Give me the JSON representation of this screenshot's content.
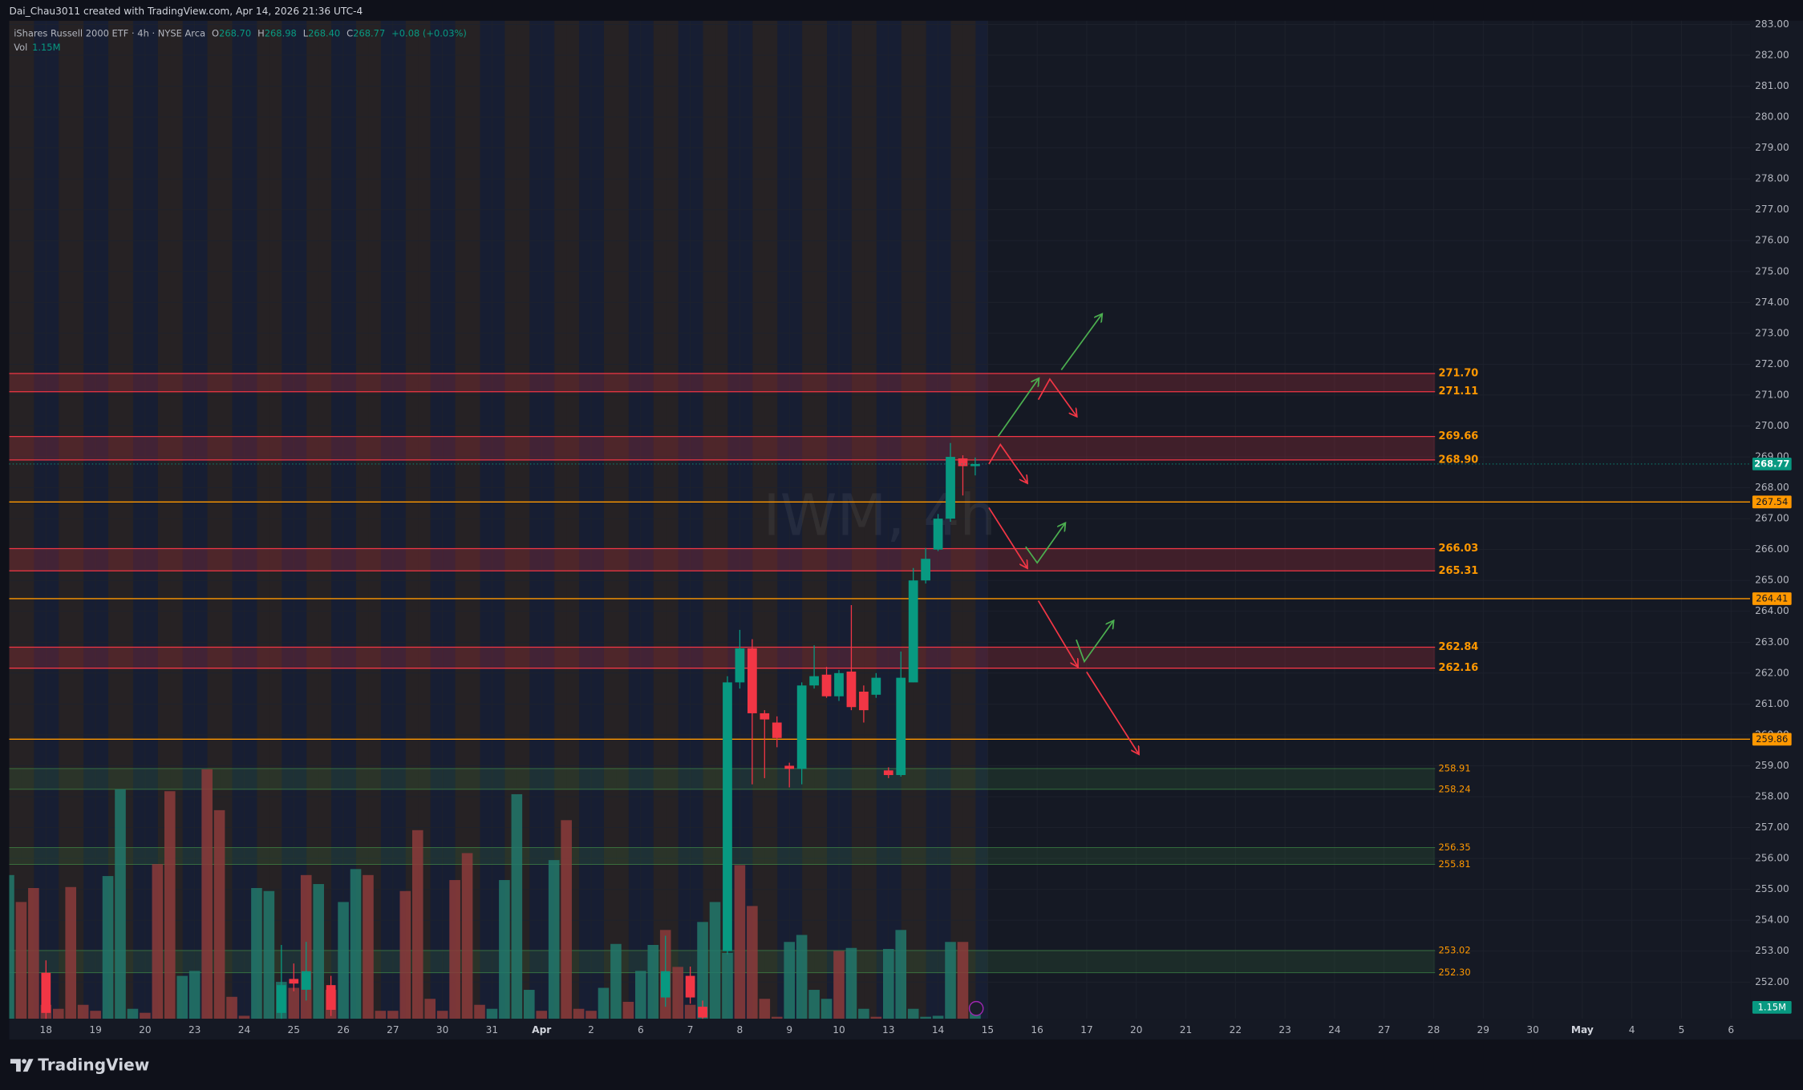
{
  "header": {
    "creator": "Dai_Chau3011 created with TradingView.com, Apr 14, 2026 21:36 UTC-4",
    "symbol": "iShares Russell 2000 ETF · 4h · NYSE Arca",
    "ohlc": [
      {
        "key": "O",
        "value": "268.70"
      },
      {
        "key": "H",
        "value": "268.98"
      },
      {
        "key": "L",
        "value": "268.40"
      },
      {
        "key": "C",
        "value": "268.77"
      }
    ],
    "change": "+0.08 (+0.03%)",
    "volume_key": "Vol",
    "volume": "1.15M"
  },
  "footer": {
    "brand": "TradingView"
  },
  "chart_data": {
    "type": "candlestick",
    "watermark": "IWM, 4h",
    "xlim": [
      -0.742,
      34.385
    ],
    "ylim": [
      250.81,
      283.12
    ],
    "xticks": [
      {
        "value": 0,
        "label": "18"
      },
      {
        "value": 1,
        "label": "19"
      },
      {
        "value": 2,
        "label": "20"
      },
      {
        "value": 3,
        "label": "23"
      },
      {
        "value": 4,
        "label": "24"
      },
      {
        "value": 5,
        "label": "25"
      },
      {
        "value": 6,
        "label": "26"
      },
      {
        "value": 7,
        "label": "27"
      },
      {
        "value": 8,
        "label": "30"
      },
      {
        "value": 9,
        "label": "31"
      },
      {
        "value": 10,
        "label": "Apr"
      },
      {
        "value": 11,
        "label": "2"
      },
      {
        "value": 12,
        "label": "6"
      },
      {
        "value": 13,
        "label": "7"
      },
      {
        "value": 14,
        "label": "8"
      },
      {
        "value": 15,
        "label": "9"
      },
      {
        "value": 16,
        "label": "10"
      },
      {
        "value": 17,
        "label": "13"
      },
      {
        "value": 18,
        "label": "14"
      },
      {
        "value": 19,
        "label": "15"
      },
      {
        "value": 20,
        "label": "16"
      },
      {
        "value": 21,
        "label": "17"
      },
      {
        "value": 22,
        "label": "20"
      },
      {
        "value": 23,
        "label": "21"
      },
      {
        "value": 24,
        "label": "22"
      },
      {
        "value": 25,
        "label": "23"
      },
      {
        "value": 26,
        "label": "24"
      },
      {
        "value": 27,
        "label": "27"
      },
      {
        "value": 28,
        "label": "28"
      },
      {
        "value": 29,
        "label": "29"
      },
      {
        "value": 30,
        "label": "30"
      },
      {
        "value": 31,
        "label": "May"
      },
      {
        "value": 32,
        "label": "4"
      },
      {
        "value": 33,
        "label": "5"
      },
      {
        "value": 34,
        "label": "6"
      }
    ],
    "yticks": [
      {
        "value": 252,
        "label": "252.00"
      },
      {
        "value": 253,
        "label": "253.00"
      },
      {
        "value": 254,
        "label": "254.00"
      },
      {
        "value": 255,
        "label": "255.00"
      },
      {
        "value": 256,
        "label": "256.00"
      },
      {
        "value": 257,
        "label": "257.00"
      },
      {
        "value": 258,
        "label": "258.00"
      },
      {
        "value": 259,
        "label": "259.00"
      },
      {
        "value": 260,
        "label": "260.00"
      },
      {
        "value": 261,
        "label": "261.00"
      },
      {
        "value": 262,
        "label": "262.00"
      },
      {
        "value": 263,
        "label": "263.00"
      },
      {
        "value": 264,
        "label": "264.00"
      },
      {
        "value": 265,
        "label": "265.00"
      },
      {
        "value": 266,
        "label": "266.00"
      },
      {
        "value": 267,
        "label": "267.00"
      },
      {
        "value": 268,
        "label": "268.00"
      },
      {
        "value": 269,
        "label": "269.00"
      },
      {
        "value": 270,
        "label": "270.00"
      },
      {
        "value": 271,
        "label": "271.00"
      },
      {
        "value": 272,
        "label": "272.00"
      },
      {
        "value": 273,
        "label": "273.00"
      },
      {
        "value": 274,
        "label": "274.00"
      },
      {
        "value": 275,
        "label": "275.00"
      },
      {
        "value": 276,
        "label": "276.00"
      },
      {
        "value": 277,
        "label": "277.00"
      },
      {
        "value": 278,
        "label": "278.00"
      },
      {
        "value": 279,
        "label": "279.00"
      },
      {
        "value": 280,
        "label": "280.00"
      },
      {
        "value": 281,
        "label": "281.00"
      },
      {
        "value": 282,
        "label": "282.00"
      },
      {
        "value": 283,
        "label": "283.00"
      }
    ],
    "up_color": "#089981",
    "down_color": "#f23645",
    "candles": {
      "x": [
        0.0,
        4.75,
        5.0,
        5.25,
        5.75,
        12.5,
        13.0,
        13.25,
        13.75,
        14.0,
        14.25,
        14.5,
        14.75,
        15.0,
        15.25,
        15.5,
        15.75,
        16.0,
        16.25,
        16.5,
        16.75,
        17.0,
        17.25,
        17.5,
        17.75,
        18.0,
        18.25,
        18.5,
        18.75
      ],
      "open": [
        252.3,
        251.0,
        252.1,
        251.75,
        251.9,
        251.5,
        252.2,
        251.2,
        253.0,
        261.7,
        262.8,
        260.7,
        260.4,
        259.0,
        258.9,
        261.6,
        261.95,
        261.25,
        262.05,
        261.4,
        261.3,
        258.85,
        258.7,
        261.7,
        265.0,
        266.0,
        267.0,
        268.95,
        268.7
      ],
      "high": [
        252.7,
        253.2,
        252.6,
        253.3,
        252.2,
        253.5,
        252.5,
        251.4,
        261.9,
        263.4,
        263.1,
        260.8,
        260.6,
        259.1,
        261.7,
        262.9,
        262.2,
        262.1,
        264.2,
        261.6,
        262.0,
        258.95,
        262.7,
        265.4,
        266.05,
        267.15,
        269.45,
        269.05,
        268.98
      ],
      "low": [
        250.5,
        250.7,
        251.7,
        251.4,
        250.9,
        251.2,
        251.3,
        250.7,
        252.9,
        261.5,
        258.4,
        258.6,
        259.6,
        258.3,
        258.4,
        261.5,
        261.2,
        261.1,
        260.8,
        260.4,
        261.2,
        258.6,
        258.65,
        261.7,
        264.9,
        265.95,
        266.9,
        267.75,
        268.4
      ],
      "close": [
        251.0,
        251.9,
        251.95,
        252.35,
        251.1,
        252.35,
        251.5,
        250.85,
        261.7,
        262.8,
        260.7,
        260.5,
        259.9,
        258.9,
        261.6,
        261.9,
        261.25,
        262.0,
        260.9,
        260.8,
        261.85,
        258.7,
        261.85,
        265.0,
        265.7,
        267.0,
        269.0,
        268.7,
        268.77
      ]
    },
    "volume": {
      "vlim": [
        0,
        100
      ],
      "last_label": "1.15M",
      "x": [
        -0.75,
        -0.5,
        -0.25,
        0.0,
        0.25,
        0.5,
        0.75,
        1.0,
        1.25,
        1.5,
        1.75,
        2.0,
        2.25,
        2.5,
        2.75,
        3.0,
        3.25,
        3.5,
        3.75,
        4.0,
        4.25,
        4.5,
        4.75,
        5.0,
        5.25,
        5.5,
        5.75,
        6.0,
        6.25,
        6.5,
        6.75,
        7.0,
        7.25,
        7.5,
        7.75,
        8.0,
        8.25,
        8.5,
        8.75,
        9.0,
        9.25,
        9.5,
        9.75,
        10.0,
        10.25,
        10.5,
        10.75,
        11.0,
        11.25,
        11.5,
        11.75,
        12.0,
        12.25,
        12.5,
        12.75,
        13.0,
        13.25,
        13.5,
        13.75,
        14.0,
        14.25,
        14.5,
        14.75,
        15.0,
        15.25,
        15.5,
        15.75,
        16.0,
        16.25,
        16.5,
        16.75,
        17.0,
        17.25,
        17.5,
        17.75,
        18.0,
        18.25,
        18.5,
        18.75
      ],
      "values": [
        14.4,
        11.7,
        13.1,
        1.4,
        1.0,
        13.2,
        1.4,
        0.8,
        14.3,
        23.0,
        1.0,
        0.6,
        15.5,
        22.8,
        4.3,
        4.8,
        25.0,
        20.9,
        2.2,
        0.3,
        13.1,
        12.8,
        3.7,
        3.1,
        14.4,
        13.5,
        2.9,
        11.7,
        15.0,
        14.4,
        0.8,
        0.8,
        12.8,
        18.9,
        2.0,
        0.8,
        13.9,
        16.6,
        1.4,
        1.0,
        13.9,
        22.5,
        2.9,
        0.8,
        15.9,
        19.9,
        1.0,
        0.8,
        3.1,
        7.5,
        1.7,
        4.8,
        7.4,
        8.9,
        5.2,
        1.4,
        9.7,
        11.7,
        6.6,
        15.4,
        11.3,
        2.0,
        0.2,
        7.7,
        8.4,
        2.9,
        2.0,
        6.8,
        7.1,
        1.0,
        0.2,
        7.0,
        8.9,
        1.0,
        0.2,
        0.3,
        7.7,
        7.7,
        1.15
      ],
      "colors": [
        "#22786b",
        "#8c3b3b",
        "#8c3b3b",
        "#8c3b3b",
        "#8c3b3b",
        "#8c3b3b",
        "#8c3b3b",
        "#8c3b3b",
        "#22786b",
        "#22786b",
        "#22786b",
        "#8c3b3b",
        "#8c3b3b",
        "#8c3b3b",
        "#22786b",
        "#22786b",
        "#8c3b3b",
        "#8c3b3b",
        "#8c3b3b",
        "#8c3b3b",
        "#22786b",
        "#22786b",
        "#22786b",
        "#8c3b3b",
        "#8c3b3b",
        "#22786b",
        "#8c3b3b",
        "#22786b",
        "#22786b",
        "#8c3b3b",
        "#8c3b3b",
        "#8c3b3b",
        "#8c3b3b",
        "#8c3b3b",
        "#8c3b3b",
        "#8c3b3b",
        "#8c3b3b",
        "#8c3b3b",
        "#8c3b3b",
        "#22786b",
        "#22786b",
        "#22786b",
        "#22786b",
        "#8c3b3b",
        "#22786b",
        "#8c3b3b",
        "#8c3b3b",
        "#8c3b3b",
        "#22786b",
        "#22786b",
        "#8c3b3b",
        "#22786b",
        "#22786b",
        "#8c3b3b",
        "#8c3b3b",
        "#8c3b3b",
        "#22786b",
        "#22786b",
        "#22786b",
        "#8c3b3b",
        "#8c3b3b",
        "#8c3b3b",
        "#8c3b3b",
        "#22786b",
        "#22786b",
        "#22786b",
        "#22786b",
        "#8c3b3b",
        "#22786b",
        "#22786b",
        "#8c3b3b",
        "#22786b",
        "#22786b",
        "#22786b",
        "#22786b",
        "#22786b",
        "#22786b",
        "#8c3b3b",
        "#22786b"
      ]
    },
    "zones": [
      {
        "top": {
          "value": 271.7,
          "label": "271.70"
        },
        "bottom": 271.11,
        "color": "#f23645"
      },
      {
        "top": 269.66,
        "bottom": {
          "value": 268.9,
          "label": "268.90"
        },
        "color": "#f23645"
      },
      {
        "top": 266.03,
        "bottom": 265.31,
        "color": "#f23645"
      },
      {
        "top": 262.84,
        "bottom": 262.16,
        "color": "#f23645"
      },
      {
        "top": 258.91,
        "bottom": 258.24,
        "color": "#4caf50"
      },
      {
        "top": 256.35,
        "bottom": 255.81,
        "color": "#4caf50"
      },
      {
        "top": 253.02,
        "bottom": {
          "value": 252.3,
          "label": "252.30"
        },
        "color": "#4caf50"
      }
    ],
    "lines": [
      {
        "value": 267.54,
        "color": "#ff9800"
      },
      {
        "value": 264.41,
        "color": "#ff9800"
      },
      {
        "value": 259.86,
        "color": "#ff9800"
      }
    ]
  }
}
